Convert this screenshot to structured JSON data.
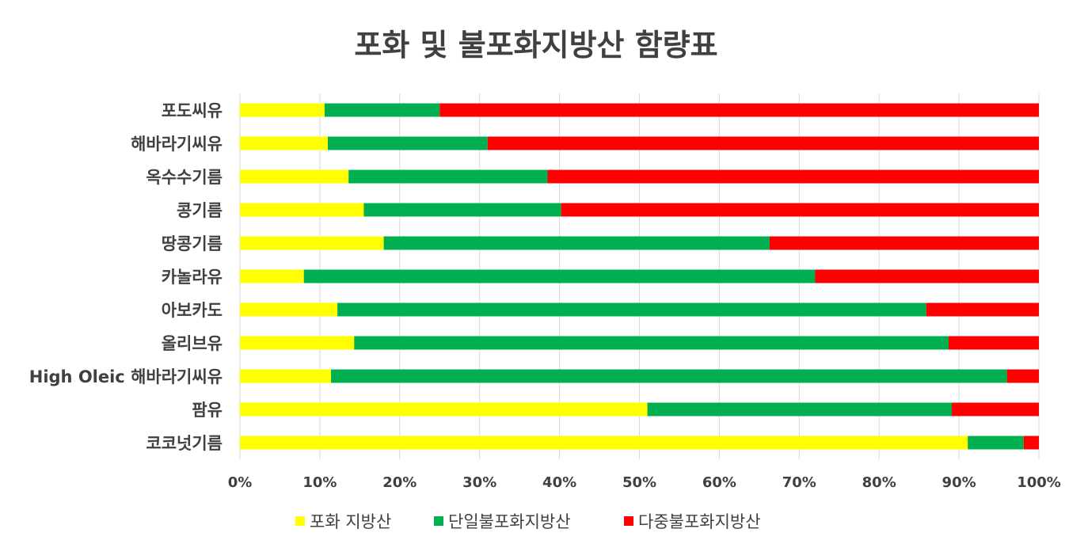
{
  "chart_data": {
    "type": "bar",
    "orientation": "horizontal",
    "stacked": "percent",
    "title": "포화 및 불포화지방산 함량표",
    "categories": [
      "포도씨유",
      "해바라기씨유",
      "옥수수기름",
      "콩기름",
      "땅콩기름",
      "카놀라유",
      "아보카도",
      "올리브유",
      "High Oleic 해바라기씨유",
      "팜유",
      "코코넛기름"
    ],
    "series": [
      {
        "name": "포화 지방산",
        "color": "#ffff00",
        "values": [
          10.6,
          11,
          13.6,
          15.5,
          18,
          8,
          12.2,
          14.3,
          11.4,
          51,
          91.1
        ]
      },
      {
        "name": "단일불포화지방산",
        "color": "#00b050",
        "values": [
          14.4,
          20,
          24.9,
          24.7,
          48.3,
          64,
          73.7,
          74.4,
          84.6,
          38.1,
          7
        ]
      },
      {
        "name": "다중불포화지방산",
        "color": "#ff0000",
        "values": [
          75,
          69,
          61.5,
          59.8,
          33.7,
          28,
          14.1,
          11.3,
          4,
          10.9,
          1.9
        ]
      }
    ],
    "xlim": [
      0,
      100
    ],
    "x_ticks": [
      "0%",
      "10%",
      "20%",
      "30%",
      "40%",
      "50%",
      "60%",
      "70%",
      "80%",
      "90%",
      "100%"
    ],
    "grid": true,
    "legend_position": "bottom"
  }
}
